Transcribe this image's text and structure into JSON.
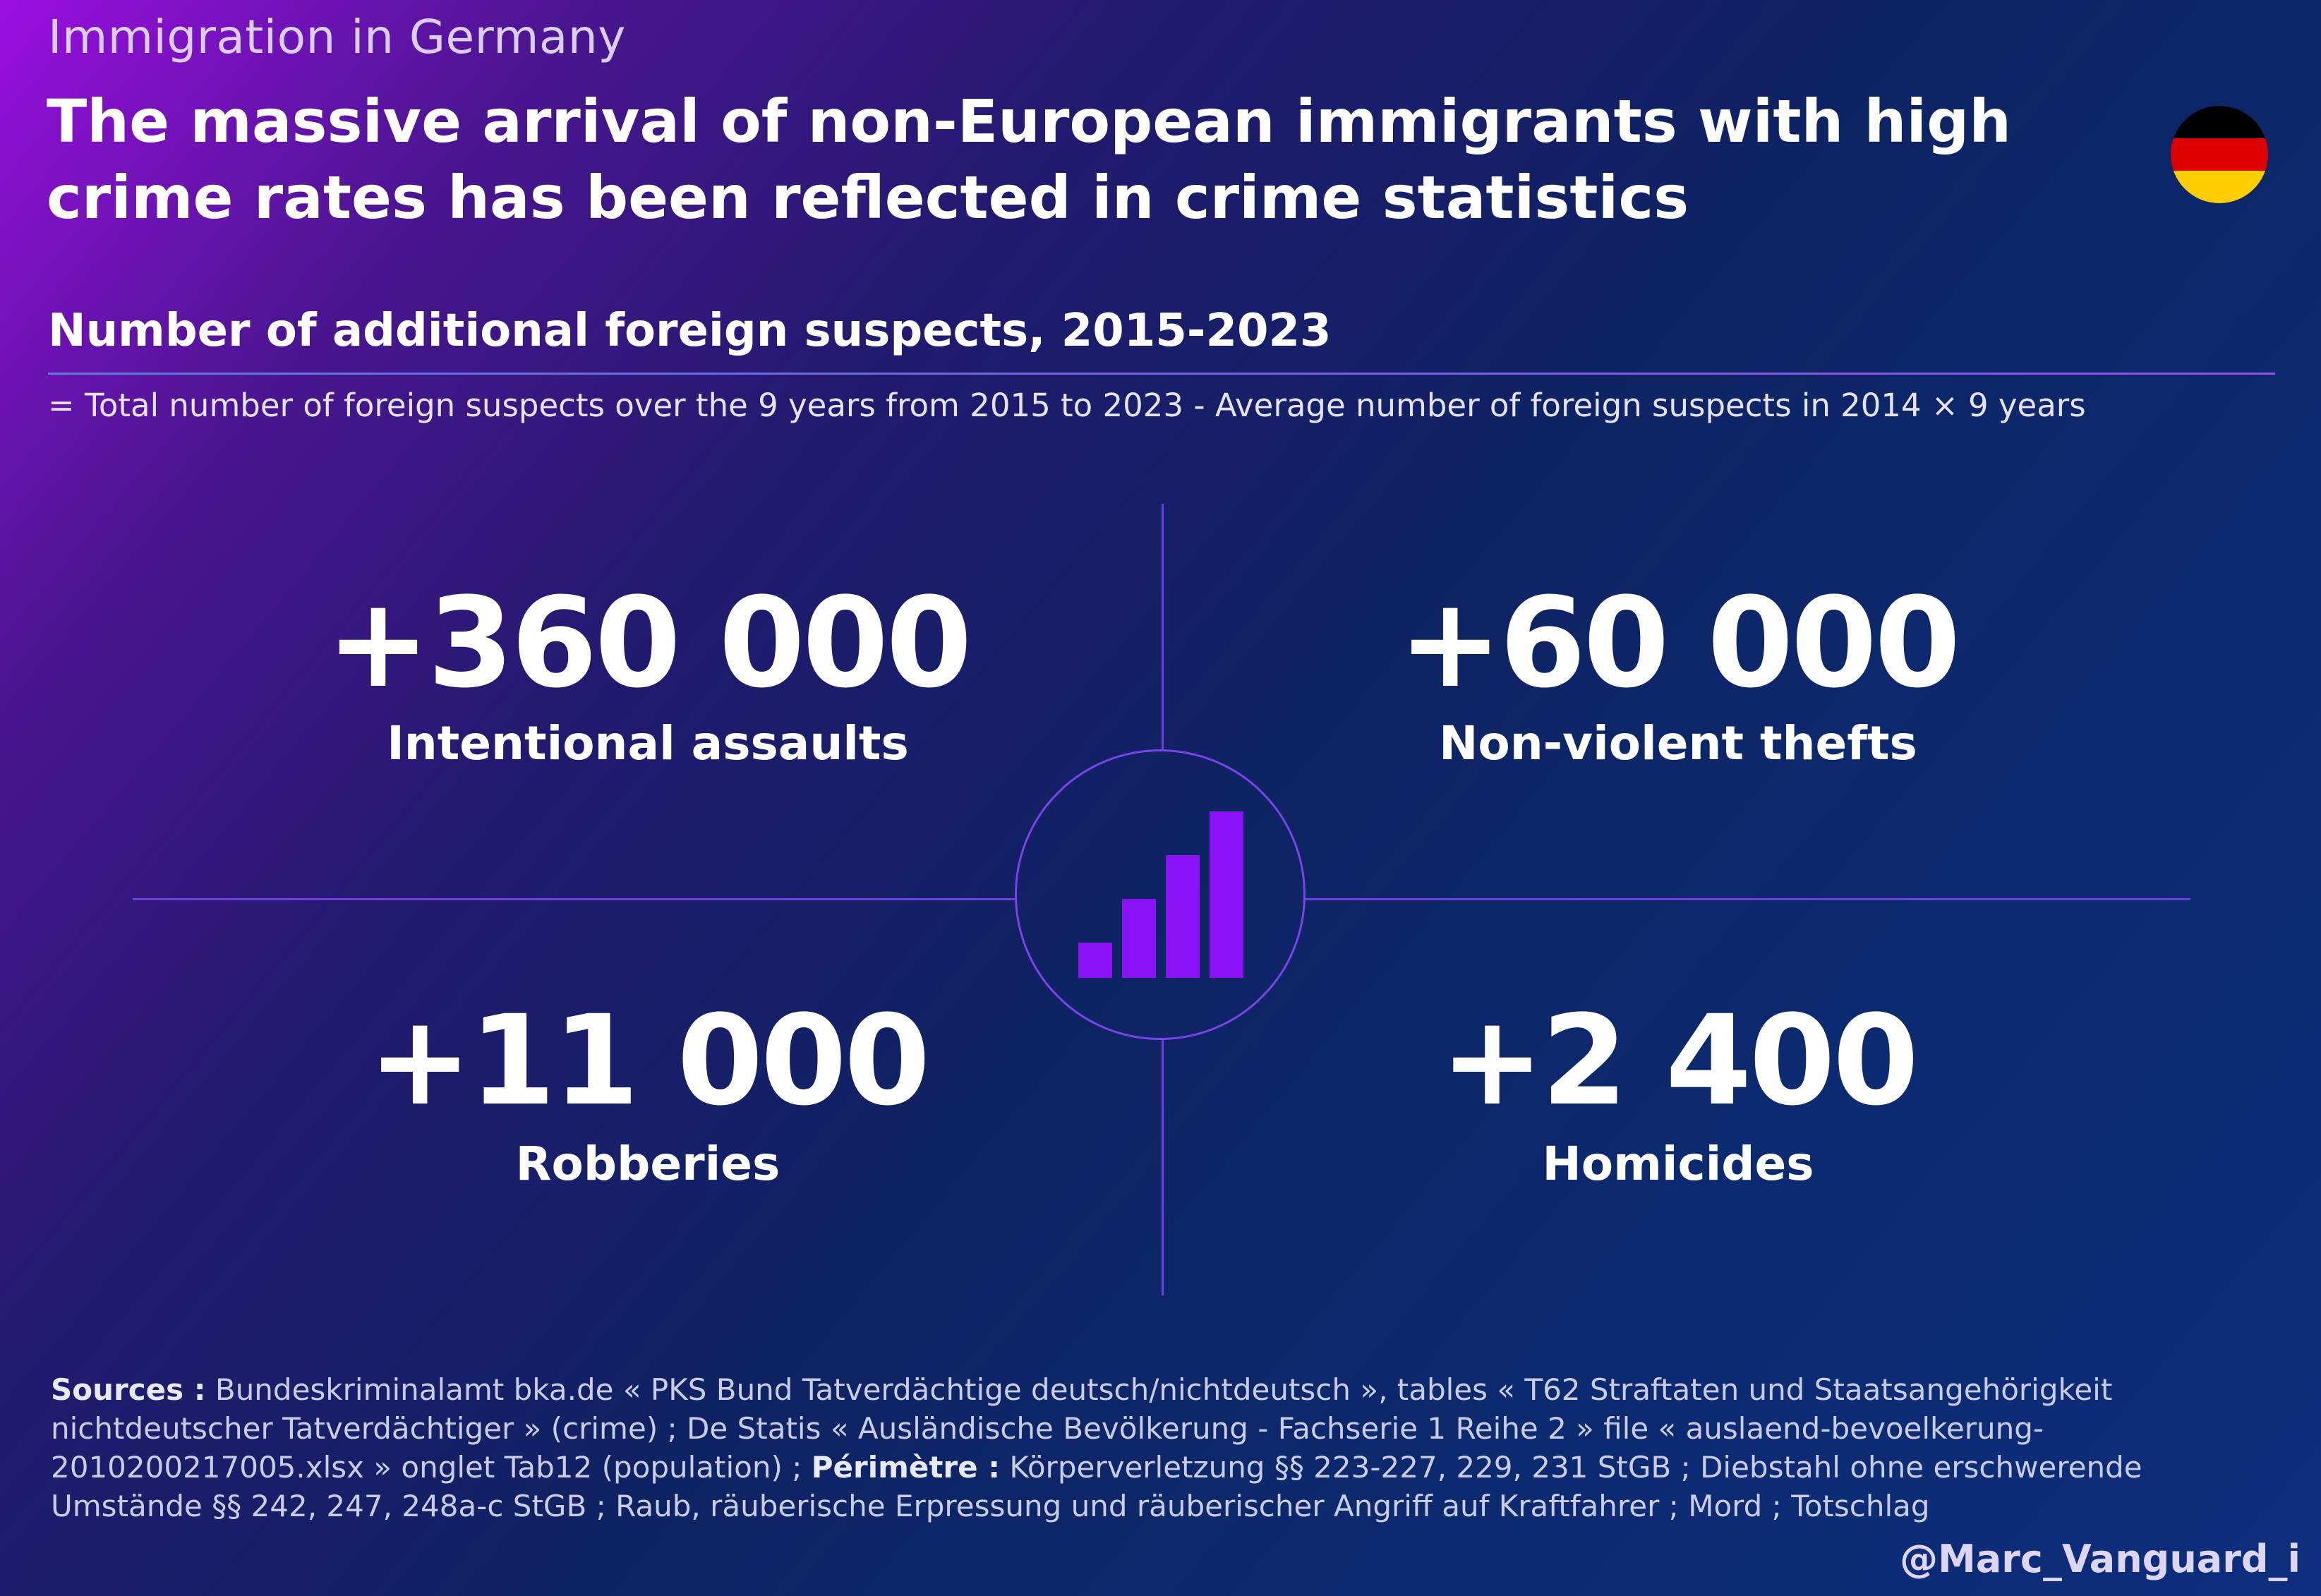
{
  "header": {
    "kicker": "Immigration in Germany",
    "headline": "The massive arrival of non-European immigrants with high crime rates has been reflected in crime statistics"
  },
  "flag": {
    "icon": "germany-flag-icon",
    "colors": [
      "#000000",
      "#dd0000",
      "#ffce00"
    ]
  },
  "section": {
    "title": "Number of additional foreign suspects, 2015-2023",
    "formula": "= Total number of foreign suspects over the 9 years from 2015 to 2023 - Average number of foreign suspects in 2014 × 9 years"
  },
  "center_icon": {
    "icon": "bar-chart-icon",
    "color": "#8a12f5"
  },
  "stats": [
    {
      "value": "+360 000",
      "label": "Intentional assaults"
    },
    {
      "value": "+60 000",
      "label": "Non-violent thefts"
    },
    {
      "value": "+11 000",
      "label": "Robberies"
    },
    {
      "value": "+2 400",
      "label": "Homicides"
    }
  ],
  "sources": {
    "sources_label": "Sources :",
    "sources_text": "Bundeskriminalamt bka.de « PKS Bund Tatverdächtige deutsch/nichtdeutsch », tables « T62 Straftaten und Staatsangehörigkeit nichtdeutscher Tatverdächtiger » (crime) ; De Statis « Ausländische Bevölkerung - Fachserie 1 Reihe 2 » file « auslaend-bevoelkerung-2010200217005.xlsx » onglet Tab12 (population) ;",
    "perimeter_label": "Périmètre :",
    "perimeter_text": "Körperverletzung §§ 223-227, 229, 231 StGB ; Diebstahl ohne erschwerende Umstände §§ 242, 247, 248a-c StGB ; Raub, räuberische Erpressung und räuberischer Angriff auf Kraftfahrer ; Mord ; Totschlag"
  },
  "footer": {
    "handle": "@Marc_Vanguard_i"
  }
}
